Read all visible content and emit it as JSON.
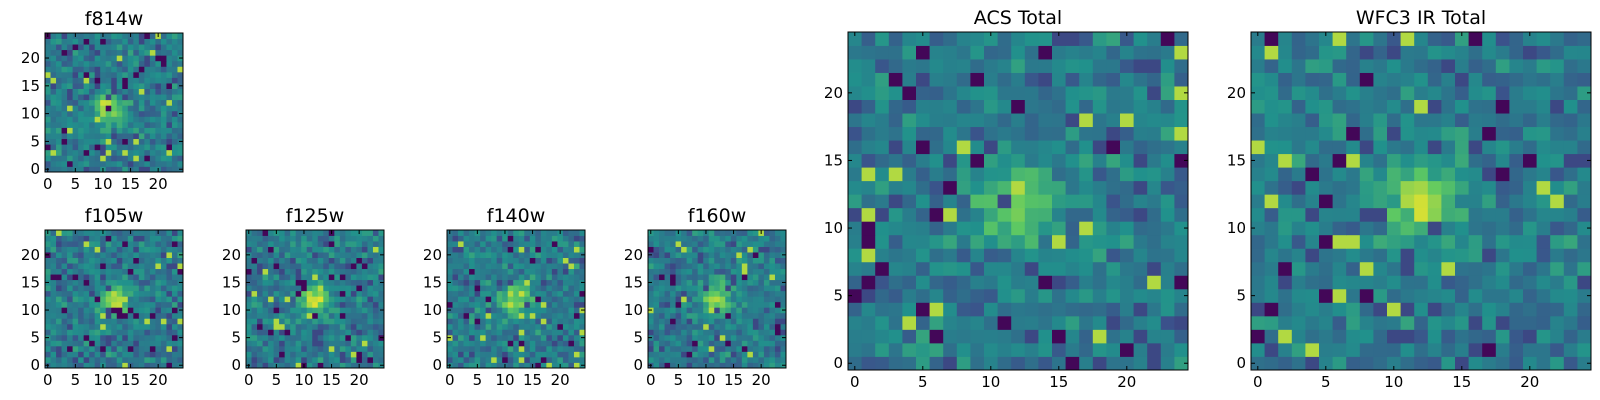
{
  "chart_data": [
    {
      "type": "heatmap",
      "title": "f814w",
      "grid": "25x25",
      "seed": 11,
      "center": [
        11,
        11
      ],
      "xticks": [
        "0",
        "5",
        "10",
        "15",
        "20"
      ],
      "yticks": [
        "0",
        "5",
        "10",
        "15",
        "20"
      ]
    },
    {
      "type": "heatmap",
      "title": "f105w",
      "grid": "25x25",
      "seed": 23,
      "center": [
        12,
        12
      ],
      "xticks": [
        "0",
        "5",
        "10",
        "15",
        "20"
      ],
      "yticks": [
        "0",
        "5",
        "10",
        "15",
        "20"
      ]
    },
    {
      "type": "heatmap",
      "title": "f125w",
      "grid": "25x25",
      "seed": 37,
      "center": [
        12,
        12
      ],
      "xticks": [
        "0",
        "5",
        "10",
        "15",
        "20"
      ],
      "yticks": [
        "0",
        "5",
        "10",
        "15",
        "20"
      ]
    },
    {
      "type": "heatmap",
      "title": "f140w",
      "grid": "25x25",
      "seed": 41,
      "center": [
        12,
        12
      ],
      "xticks": [
        "0",
        "5",
        "10",
        "15",
        "20"
      ],
      "yticks": [
        "0",
        "5",
        "10",
        "15",
        "20"
      ]
    },
    {
      "type": "heatmap",
      "title": "f160w",
      "grid": "25x25",
      "seed": 53,
      "center": [
        12,
        12
      ],
      "xticks": [
        "0",
        "5",
        "10",
        "15",
        "20"
      ],
      "yticks": [
        "0",
        "5",
        "10",
        "15",
        "20"
      ]
    },
    {
      "type": "heatmap",
      "title": "ACS Total",
      "grid": "25x25",
      "seed": 67,
      "center": [
        12,
        12
      ],
      "xticks": [
        "0",
        "5",
        "10",
        "15",
        "20"
      ],
      "yticks": [
        "0",
        "5",
        "10",
        "15",
        "20"
      ]
    },
    {
      "type": "heatmap",
      "title": "WFC3 IR Total",
      "grid": "25x25",
      "seed": 79,
      "center": [
        12,
        12
      ],
      "xticks": [
        "0",
        "5",
        "10",
        "15",
        "20"
      ],
      "yticks": [
        "0",
        "5",
        "10",
        "15",
        "20"
      ]
    }
  ],
  "colormap": {
    "name": "viridis",
    "stops": [
      "#440154",
      "#3b528b",
      "#21918c",
      "#5ec962",
      "#fde725"
    ]
  }
}
